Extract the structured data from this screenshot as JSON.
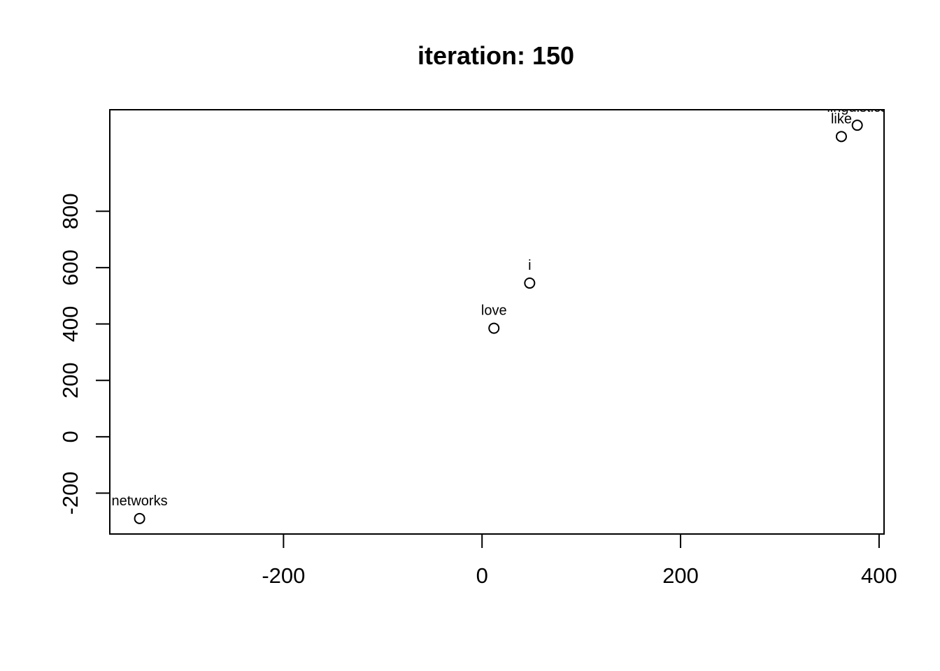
{
  "chart_data": {
    "type": "scatter",
    "title": "iteration: 150",
    "xlabel": "",
    "ylabel": "",
    "xlim": [
      -375,
      405
    ],
    "ylim": [
      -345,
      1160
    ],
    "x_ticks": [
      -200,
      0,
      200,
      400
    ],
    "y_ticks": [
      -200,
      0,
      200,
      400,
      600,
      800
    ],
    "grid": false,
    "legend": "none",
    "points": [
      {
        "label": "networks",
        "x": -345,
        "y": -290
      },
      {
        "label": "love",
        "x": 12,
        "y": 385
      },
      {
        "label": "i",
        "x": 48,
        "y": 545
      },
      {
        "label": "like",
        "x": 362,
        "y": 1065
      },
      {
        "label": "linguistics",
        "x": 378,
        "y": 1105
      }
    ]
  }
}
